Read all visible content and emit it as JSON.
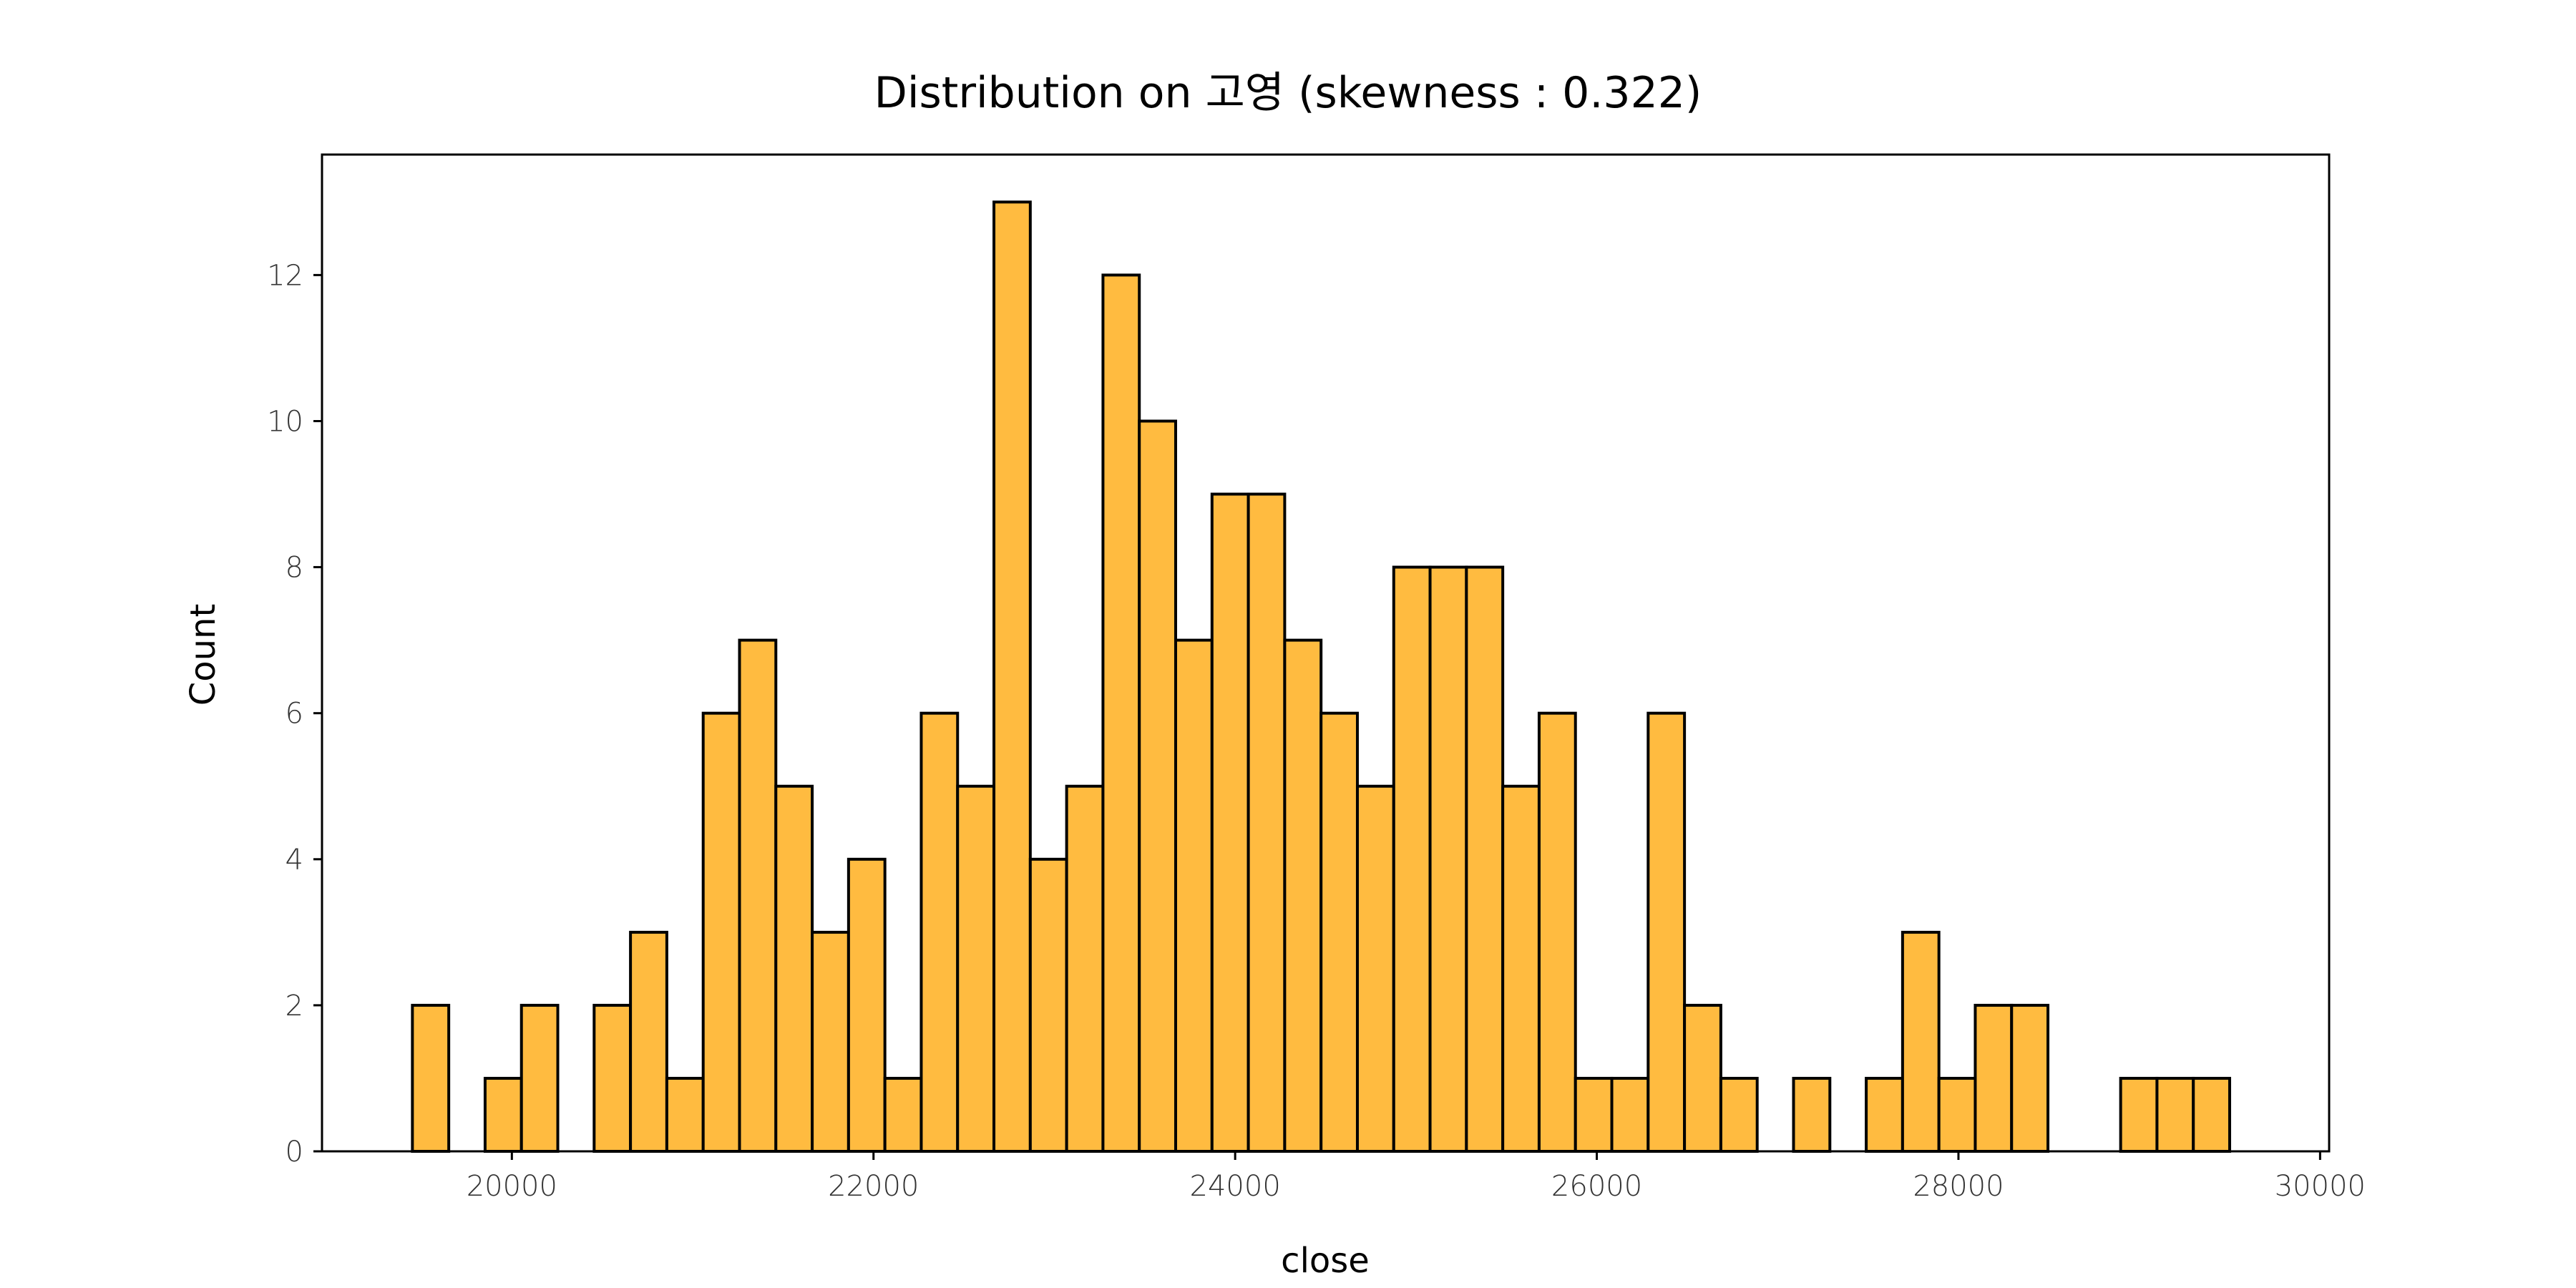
{
  "chart_data": {
    "type": "bar",
    "title": "Distribution on 고영 (skewness : 0.322)",
    "xlabel": "close",
    "ylabel": "Count",
    "bar_color": "#FFBB40",
    "edge_color": "#000000",
    "grid": false,
    "xlim": [
      18950,
      30050
    ],
    "ylim": [
      0,
      13.65
    ],
    "x_ticks": [
      20000,
      22000,
      24000,
      26000,
      28000,
      30000
    ],
    "y_ticks": [
      0,
      2,
      4,
      6,
      8,
      10,
      12
    ],
    "bin_start": 19450,
    "bin_width": 201,
    "values": [
      2,
      0,
      1,
      2,
      0,
      2,
      3,
      1,
      6,
      7,
      5,
      3,
      4,
      1,
      6,
      5,
      13,
      4,
      5,
      12,
      10,
      7,
      9,
      9,
      7,
      6,
      5,
      8,
      8,
      8,
      5,
      6,
      1,
      1,
      6,
      2,
      1,
      0,
      1,
      0,
      1,
      3,
      1,
      2,
      2,
      0,
      0,
      1,
      1,
      1
    ]
  }
}
